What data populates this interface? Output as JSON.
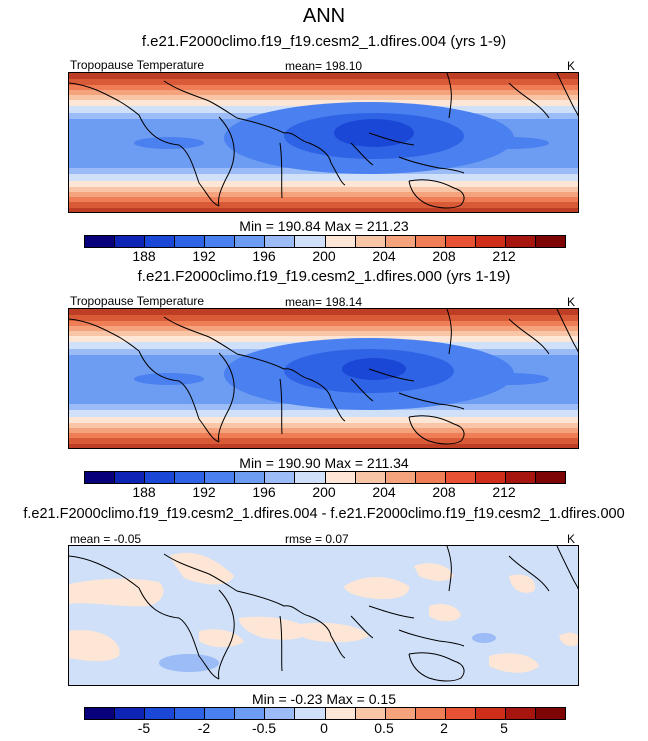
{
  "season": "ANN",
  "panels": [
    {
      "case_title": "f.e21.F2000climo.f19_f19.cesm2_1.dfires.004 (yrs 1-9)",
      "variable": "Tropopause Temperature",
      "mean_label": "mean= 198.10",
      "units": "K",
      "min_max": "Min = 190.84 Max = 211.23"
    },
    {
      "case_title": "f.e21.F2000climo.f19_f19.cesm2_1.dfires.000 (yrs 1-19)",
      "variable": "Tropopause Temperature",
      "mean_label": "mean= 198.14",
      "units": "K",
      "min_max": "Min = 190.90 Max = 211.34"
    },
    {
      "case_title": "f.e21.F2000climo.f19_f19.cesm2_1.dfires.004 - f.e21.F2000climo.f19_f19.cesm2_1.dfires.000",
      "mean_label": "mean =  -0.05",
      "rmse_label": "rmse =  0.07",
      "units": "K",
      "min_max": "Min =  -0.23 Max =   0.15"
    }
  ],
  "colorbar_abs": {
    "ticks": [
      "188",
      "192",
      "196",
      "200",
      "204",
      "208",
      "212"
    ]
  },
  "colorbar_diff": {
    "ticks": [
      "-5",
      "-2",
      "-0.5",
      "0",
      "0.5",
      "2",
      "5"
    ]
  },
  "colors": {
    "palette": [
      "#08007a",
      "#0d24b4",
      "#1a47d6",
      "#2f63e6",
      "#4a80ef",
      "#6d9cf3",
      "#9bbcf6",
      "#d0e0f9",
      "#fde6d5",
      "#f8c6a6",
      "#f5a37c",
      "#ef7d55",
      "#e65233",
      "#cf2f1a",
      "#a7150f",
      "#7d0505"
    ]
  }
}
